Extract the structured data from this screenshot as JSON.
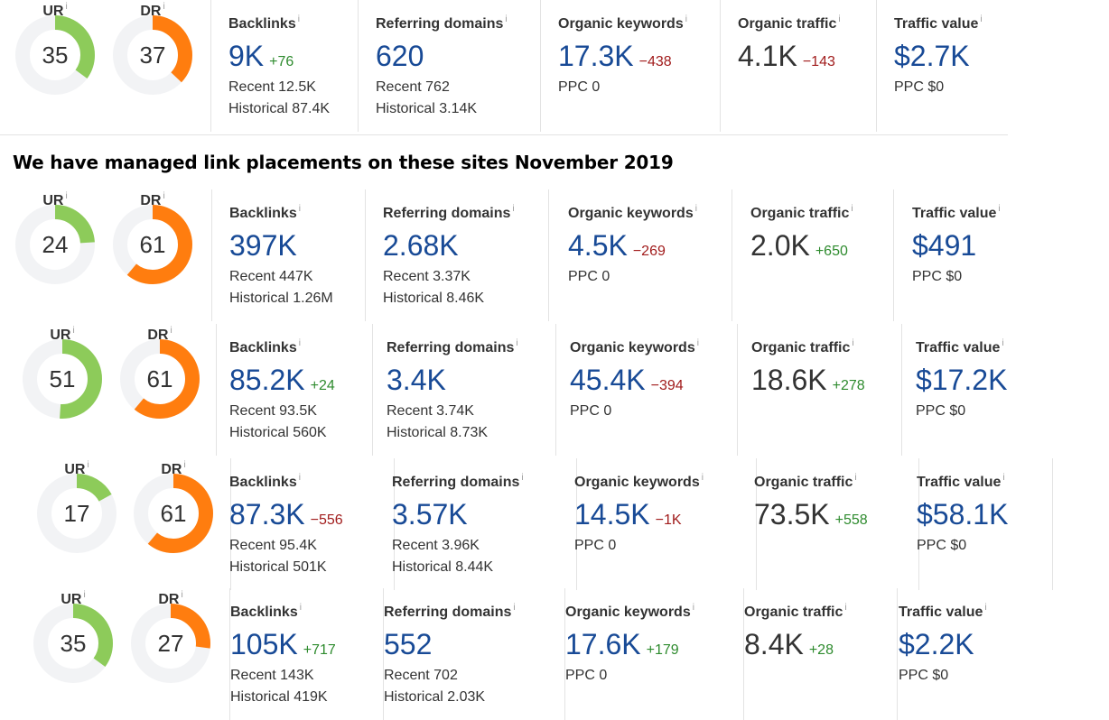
{
  "heading": "We have managed link placements on these sites November 2019",
  "info_glyph": "i",
  "colors": {
    "ur": "#8dcb5a",
    "dr": "#ff7d0f",
    "track": "#f2f3f5",
    "primary": "#184a96",
    "positive": "#2e8b2e",
    "negative": "#a11c1c"
  },
  "rows": [
    {
      "ur": {
        "label": "UR",
        "value": "35",
        "level": 35
      },
      "dr": {
        "label": "DR",
        "value": "37",
        "level": 37
      },
      "backlinks": {
        "title": "Backlinks",
        "value": "9K",
        "delta": "+76",
        "recent": "Recent 12.5K",
        "historical": "Historical 87.4K"
      },
      "referring": {
        "title": "Referring domains",
        "value": "620",
        "recent": "Recent 762",
        "historical": "Historical 3.14K"
      },
      "keywords": {
        "title": "Organic keywords",
        "value": "17.3K",
        "delta": "−438",
        "ppc": "PPC 0"
      },
      "traffic": {
        "title": "Organic traffic",
        "value": "4.1K",
        "delta": "−143"
      },
      "tvalue": {
        "title": "Traffic value",
        "value": "$2.7K",
        "ppc": "PPC $0"
      }
    },
    {
      "ur": {
        "label": "UR",
        "value": "24",
        "level": 24
      },
      "dr": {
        "label": "DR",
        "value": "61",
        "level": 61
      },
      "backlinks": {
        "title": "Backlinks",
        "value": "397K",
        "delta": "",
        "recent": "Recent 447K",
        "historical": "Historical 1.26M"
      },
      "referring": {
        "title": "Referring domains",
        "value": "2.68K",
        "recent": "Recent 3.37K",
        "historical": "Historical 8.46K"
      },
      "keywords": {
        "title": "Organic keywords",
        "value": "4.5K",
        "delta": "−269",
        "ppc": "PPC 0"
      },
      "traffic": {
        "title": "Organic traffic",
        "value": "2.0K",
        "delta": "+650"
      },
      "tvalue": {
        "title": "Traffic value",
        "value": "$491",
        "ppc": "PPC $0"
      }
    },
    {
      "ur": {
        "label": "UR",
        "value": "51",
        "level": 51
      },
      "dr": {
        "label": "DR",
        "value": "61",
        "level": 61
      },
      "backlinks": {
        "title": "Backlinks",
        "value": "85.2K",
        "delta": "+24",
        "recent": "Recent 93.5K",
        "historical": "Historical 560K"
      },
      "referring": {
        "title": "Referring domains",
        "value": "3.4K",
        "recent": "Recent 3.74K",
        "historical": "Historical 8.73K"
      },
      "keywords": {
        "title": "Organic keywords",
        "value": "45.4K",
        "delta": "−394",
        "ppc": "PPC 0"
      },
      "traffic": {
        "title": "Organic traffic",
        "value": "18.6K",
        "delta": "+278"
      },
      "tvalue": {
        "title": "Traffic value",
        "value": "$17.2K",
        "ppc": "PPC $0"
      }
    },
    {
      "ur": {
        "label": "UR",
        "value": "17",
        "level": 17
      },
      "dr": {
        "label": "DR",
        "value": "61",
        "level": 61
      },
      "backlinks": {
        "title": "Backlinks",
        "value": "87.3K",
        "delta": "−556",
        "recent": "Recent 95.4K",
        "historical": "Historical 501K"
      },
      "referring": {
        "title": "Referring domains",
        "value": "3.57K",
        "recent": "Recent 3.96K",
        "historical": "Historical 8.44K"
      },
      "keywords": {
        "title": "Organic keywords",
        "value": "14.5K",
        "delta": "−1K",
        "ppc": "PPC 0"
      },
      "traffic": {
        "title": "Organic traffic",
        "value": "73.5K",
        "delta": "+558"
      },
      "tvalue": {
        "title": "Traffic value",
        "value": "$58.1K",
        "ppc": "PPC $0"
      }
    },
    {
      "ur": {
        "label": "UR",
        "value": "35",
        "level": 35
      },
      "dr": {
        "label": "DR",
        "value": "27",
        "level": 27
      },
      "backlinks": {
        "title": "Backlinks",
        "value": "105K",
        "delta": "+717",
        "recent": "Recent 143K",
        "historical": "Historical 419K"
      },
      "referring": {
        "title": "Referring domains",
        "value": "552",
        "recent": "Recent 702",
        "historical": "Historical 2.03K"
      },
      "keywords": {
        "title": "Organic keywords",
        "value": "17.6K",
        "delta": "+179",
        "ppc": "PPC 0"
      },
      "traffic": {
        "title": "Organic traffic",
        "value": "8.4K",
        "delta": "+28"
      },
      "tvalue": {
        "title": "Traffic value",
        "value": "$2.2K",
        "ppc": "PPC $0"
      }
    }
  ]
}
